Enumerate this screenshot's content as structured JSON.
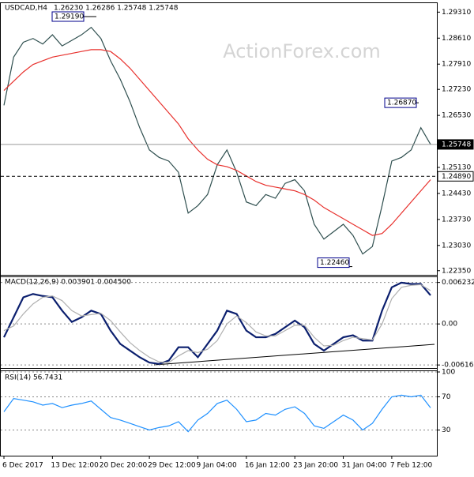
{
  "chart_data": [
    {
      "type": "line",
      "title": "USDCAD,H4",
      "subtitle": "1.26230 1.26286 1.25748 1.25748",
      "watermark": "ActionForex.com",
      "ylim": [
        1.2226,
        1.2953
      ],
      "yticks": [
        {
          "value": 1.2931,
          "label": "1.29310"
        },
        {
          "value": 1.2861,
          "label": "1.28610"
        },
        {
          "value": 1.2791,
          "label": "1.27910"
        },
        {
          "value": 1.2723,
          "label": "1.27230"
        },
        {
          "value": 1.2653,
          "label": "1.26530"
        },
        {
          "value": 1.2513,
          "label": "1.25130"
        },
        {
          "value": 1.2443,
          "label": "1.24430"
        },
        {
          "value": 1.2373,
          "label": "1.23730"
        },
        {
          "value": 1.2303,
          "label": "1.23030"
        },
        {
          "value": 1.2235,
          "label": "1.22350"
        }
      ],
      "price_levels": [
        {
          "value": 1.25748,
          "label": "1.25748"
        },
        {
          "value": 1.2489,
          "label": "1.24890"
        }
      ],
      "annotations": [
        {
          "value": 1.2919,
          "label": "1.29190"
        },
        {
          "value": 1.2687,
          "label": "1.26870"
        },
        {
          "value": 1.2246,
          "label": "1.22460"
        }
      ],
      "series": [
        {
          "color": "#2f4f4f",
          "values": [
            1.268,
            1.281,
            1.285,
            1.286,
            1.2845,
            1.287,
            1.284,
            1.2855,
            1.287,
            1.289,
            1.286,
            1.28,
            1.275,
            1.269,
            1.262,
            1.256,
            1.254,
            1.253,
            1.25,
            1.239,
            1.241,
            1.244,
            1.252,
            1.256,
            1.25,
            1.242,
            1.241,
            1.244,
            1.243,
            1.247,
            1.248,
            1.245,
            1.236,
            1.232,
            1.234,
            1.236,
            1.233,
            1.228,
            1.23,
            1.241,
            1.253,
            1.254,
            1.256,
            1.262,
            1.2575
          ]
        },
        {
          "color": "#e8302c",
          "values": [
            1.272,
            1.2745,
            1.277,
            1.279,
            1.28,
            1.281,
            1.2815,
            1.282,
            1.2825,
            1.283,
            1.283,
            1.2825,
            1.2805,
            1.278,
            1.275,
            1.272,
            1.269,
            1.266,
            1.263,
            1.259,
            1.256,
            1.2535,
            1.252,
            1.2515,
            1.2505,
            1.249,
            1.2475,
            1.2465,
            1.246,
            1.2455,
            1.245,
            1.244,
            1.2425,
            1.2405,
            1.239,
            1.2375,
            1.236,
            1.2345,
            1.233,
            1.2335,
            1.236,
            1.239,
            1.242,
            1.245,
            1.248
          ]
        }
      ]
    },
    {
      "type": "line",
      "title": "MACD(12,26,9) 0.003901 0.004500",
      "ylim": [
        -0.0065,
        0.0069
      ],
      "yticks": [
        0.006232,
        {
          "value": 0,
          "label": "0.00"
        },
        -0.006163
      ],
      "series": [
        {
          "color": "#0b1f6e",
          "values": [
            -0.002,
            0.001,
            0.004,
            0.0045,
            0.0042,
            0.004,
            0.002,
            0.0003,
            0.001,
            0.002,
            0.0015,
            -0.001,
            -0.003,
            -0.004,
            -0.005,
            -0.0058,
            -0.006,
            -0.0055,
            -0.0035,
            -0.0035,
            -0.005,
            -0.003,
            -0.001,
            0.002,
            0.0015,
            -0.001,
            -0.002,
            -0.002,
            -0.0015,
            -0.0005,
            0.0005,
            -0.0005,
            -0.003,
            -0.004,
            -0.003,
            -0.002,
            -0.0017,
            -0.0025,
            -0.0025,
            0.002,
            0.0055,
            0.0062,
            0.006,
            0.006,
            0.0043
          ]
        },
        {
          "color": "#b0b0b0",
          "values": [
            -0.001,
            -0.0003,
            0.0015,
            0.003,
            0.004,
            0.0042,
            0.0035,
            0.002,
            0.0012,
            0.0014,
            0.0016,
            0.0005,
            -0.0012,
            -0.0028,
            -0.004,
            -0.005,
            -0.0057,
            -0.0058,
            -0.0048,
            -0.004,
            -0.0043,
            -0.0038,
            -0.0025,
            0,
            0.0012,
            0.0002,
            -0.0012,
            -0.0018,
            -0.0018,
            -0.001,
            -0.0002,
            -0.0002,
            -0.002,
            -0.0033,
            -0.0032,
            -0.0025,
            -0.002,
            -0.0022,
            -0.0024,
            0,
            0.0038,
            0.0055,
            0.0058,
            0.0059,
            0.005
          ]
        }
      ]
    },
    {
      "type": "line",
      "title": "RSI(14) 56.7431",
      "ylim": [
        0,
        100
      ],
      "yticks": [
        100,
        70,
        30
      ],
      "categories": [
        "6 Dec 2017",
        null,
        null,
        null,
        null,
        "13 Dec 12:00",
        null,
        null,
        null,
        null,
        "20 Dec 20:00",
        null,
        null,
        null,
        null,
        "29 Dec 12:00",
        null,
        null,
        null,
        null,
        "9 Jan 04:00",
        null,
        null,
        null,
        null,
        "16 Jan 12:00",
        null,
        null,
        null,
        null,
        "23 Jan 20:00",
        null,
        null,
        null,
        null,
        "31 Jan 04:00",
        null,
        null,
        null,
        null,
        "7 Feb 12:00",
        null,
        null,
        null,
        null
      ],
      "series": [
        {
          "color": "#1e90ff",
          "values": [
            52,
            68,
            66,
            64,
            60,
            62,
            57,
            60,
            62,
            65,
            55,
            45,
            42,
            38,
            34,
            30,
            33,
            35,
            40,
            28,
            42,
            50,
            62,
            66,
            55,
            40,
            42,
            50,
            48,
            55,
            58,
            50,
            35,
            32,
            40,
            48,
            42,
            30,
            38,
            55,
            70,
            72,
            70,
            72,
            56.7431
          ]
        }
      ]
    }
  ]
}
